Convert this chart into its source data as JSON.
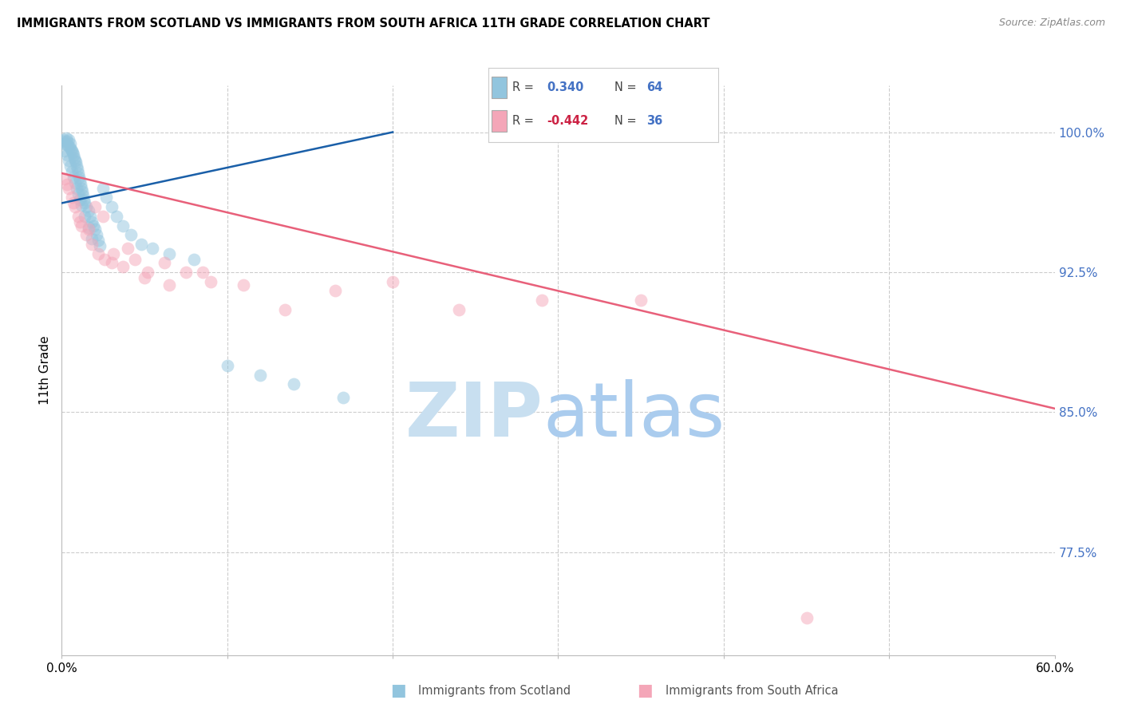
{
  "title": "IMMIGRANTS FROM SCOTLAND VS IMMIGRANTS FROM SOUTH AFRICA 11TH GRADE CORRELATION CHART",
  "source": "Source: ZipAtlas.com",
  "ylabel": "11th Grade",
  "xlim": [
    0.0,
    60.0
  ],
  "ylim": [
    72.0,
    102.5
  ],
  "yticks": [
    77.5,
    85.0,
    92.5,
    100.0
  ],
  "ytick_labels": [
    "77.5%",
    "85.0%",
    "92.5%",
    "100.0%"
  ],
  "scotland_color": "#92c5de",
  "southafrica_color": "#f4a6b8",
  "scotland_line_color": "#1a5fa8",
  "southafrica_line_color": "#e8607a",
  "watermark_zip_color": "#c8dff0",
  "watermark_atlas_color": "#aaccee",
  "scotland_line_x0": 0.0,
  "scotland_line_y0": 96.2,
  "scotland_line_x1": 20.0,
  "scotland_line_y1": 100.0,
  "southafrica_line_x0": 0.0,
  "southafrica_line_y0": 97.8,
  "southafrica_line_x1": 60.0,
  "southafrica_line_y1": 85.2,
  "scotland_x": [
    0.1,
    0.15,
    0.2,
    0.25,
    0.3,
    0.35,
    0.4,
    0.45,
    0.5,
    0.55,
    0.6,
    0.65,
    0.7,
    0.75,
    0.8,
    0.85,
    0.9,
    0.95,
    1.0,
    1.05,
    1.1,
    1.15,
    1.2,
    1.25,
    1.3,
    1.35,
    1.4,
    1.5,
    1.6,
    1.7,
    1.8,
    1.9,
    2.0,
    2.1,
    2.2,
    2.3,
    2.5,
    2.7,
    3.0,
    3.3,
    3.7,
    4.2,
    4.8,
    5.5,
    6.5,
    8.0,
    10.0,
    12.0,
    14.0,
    17.0,
    0.2,
    0.3,
    0.4,
    0.5,
    0.6,
    0.7,
    0.8,
    0.9,
    1.0,
    1.1,
    1.2,
    1.4,
    1.6,
    1.8
  ],
  "scotland_y": [
    99.5,
    99.6,
    99.4,
    99.7,
    99.5,
    99.3,
    99.6,
    99.2,
    99.4,
    99.1,
    99.0,
    98.9,
    98.8,
    98.6,
    98.5,
    98.4,
    98.2,
    98.0,
    97.8,
    97.6,
    97.4,
    97.2,
    97.0,
    96.8,
    96.6,
    96.4,
    96.2,
    96.0,
    95.8,
    95.5,
    95.2,
    95.0,
    94.8,
    94.5,
    94.2,
    93.9,
    97.0,
    96.5,
    96.0,
    95.5,
    95.0,
    94.5,
    94.0,
    93.8,
    93.5,
    93.2,
    87.5,
    87.0,
    86.5,
    85.8,
    99.0,
    98.8,
    98.5,
    98.2,
    97.9,
    97.6,
    97.3,
    97.0,
    96.7,
    96.4,
    96.1,
    95.5,
    94.9,
    94.3
  ],
  "southafrica_x": [
    0.2,
    0.4,
    0.6,
    0.8,
    1.0,
    1.2,
    1.5,
    1.8,
    2.2,
    2.6,
    3.1,
    3.7,
    4.4,
    5.2,
    6.2,
    7.5,
    9.0,
    11.0,
    13.5,
    16.5,
    20.0,
    24.0,
    29.0,
    35.0,
    45.0,
    0.3,
    0.7,
    1.1,
    1.6,
    2.0,
    2.5,
    3.0,
    4.0,
    5.0,
    6.5,
    8.5
  ],
  "southafrica_y": [
    97.5,
    97.0,
    96.5,
    96.0,
    95.5,
    95.0,
    94.5,
    94.0,
    93.5,
    93.2,
    93.5,
    92.8,
    93.2,
    92.5,
    93.0,
    92.5,
    92.0,
    91.8,
    90.5,
    91.5,
    92.0,
    90.5,
    91.0,
    91.0,
    74.0,
    97.2,
    96.2,
    95.2,
    94.8,
    96.0,
    95.5,
    93.0,
    93.8,
    92.2,
    91.8,
    92.5
  ]
}
